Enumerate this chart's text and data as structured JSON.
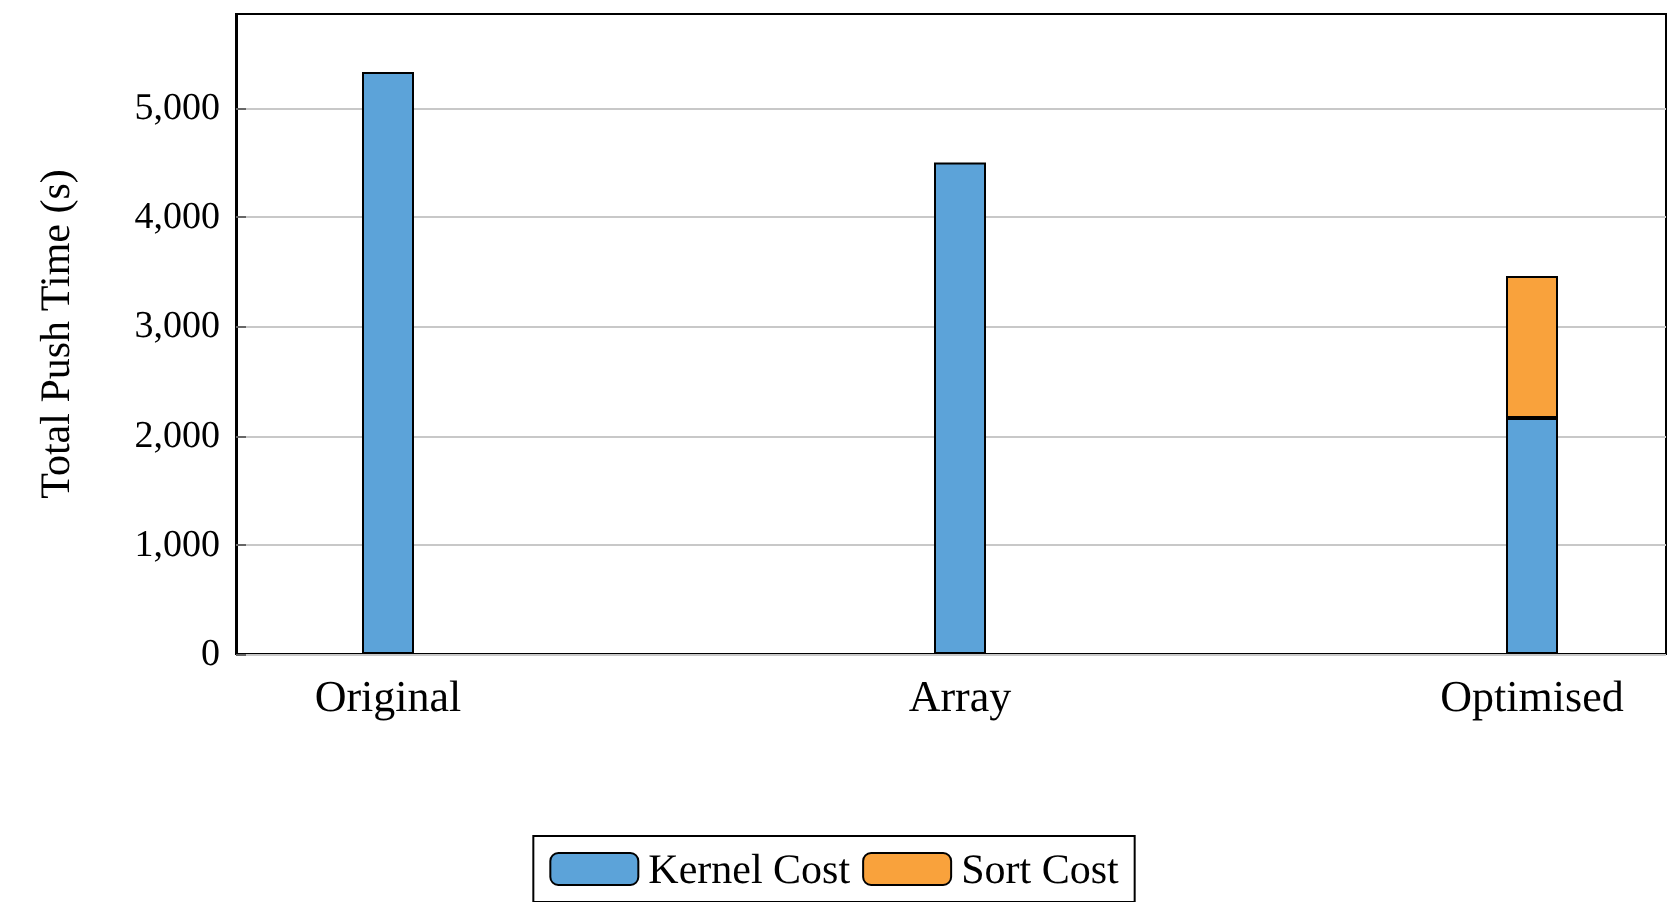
{
  "chart_data": {
    "type": "bar",
    "ylabel": "Total Push Time (s)",
    "categories": [
      "Original",
      "Array",
      "Optimised"
    ],
    "stacked": true,
    "series": [
      {
        "name": "Kernel Cost",
        "color": "#5ca3d9",
        "values": [
          5330,
          4500,
          2160
        ]
      },
      {
        "name": "Sort Cost",
        "color": "#f9a23c",
        "values": [
          null,
          null,
          1300
        ]
      }
    ],
    "ylim": [
      0,
      5860
    ],
    "yticks": [
      {
        "value": 0,
        "label": "0"
      },
      {
        "value": 1000,
        "label": "1,000"
      },
      {
        "value": 2000,
        "label": "2,000"
      },
      {
        "value": 3000,
        "label": "3,000"
      },
      {
        "value": 4000,
        "label": "4,000"
      },
      {
        "value": 5000,
        "label": "5,000"
      }
    ],
    "grid": "y",
    "legend": "bottom"
  }
}
